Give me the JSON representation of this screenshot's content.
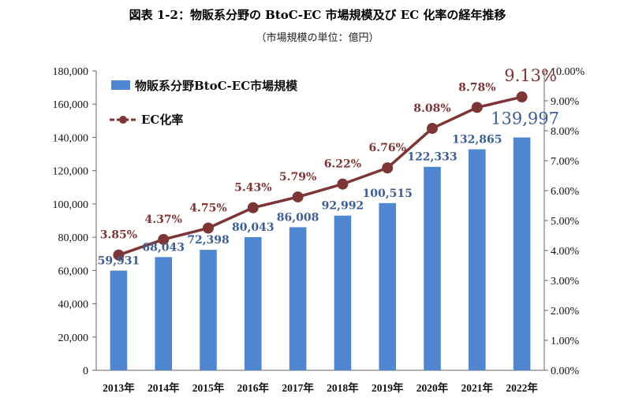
{
  "title": "図表 1-2：物販系分野の BtoC-EC 市場規模及び EC 化率の経年推移",
  "subtitle": "（市場規模の単位：億円）",
  "chart_data": {
    "type": "bar+line",
    "categories": [
      "2013年",
      "2014年",
      "2015年",
      "2016年",
      "2017年",
      "2018年",
      "2019年",
      "2020年",
      "2021年",
      "2022年"
    ],
    "series": [
      {
        "name": "物販系分野BtoC-EC市場規模",
        "type": "bar",
        "axis": "left",
        "color": "#4f86cf",
        "values": [
          59931,
          68043,
          72398,
          80043,
          86008,
          92992,
          100515,
          122333,
          132865,
          139997
        ],
        "labels": [
          "59,931",
          "68,043",
          "72,398",
          "80,043",
          "86,008",
          "92,992",
          "100,515",
          "122,333",
          "132,865",
          "139,997"
        ]
      },
      {
        "name": "EC化率",
        "type": "line",
        "axis": "right",
        "color": "#7d3535",
        "values": [
          3.85,
          4.37,
          4.75,
          5.43,
          5.79,
          6.22,
          6.76,
          8.08,
          8.78,
          9.13
        ],
        "labels": [
          "3.85%",
          "4.37%",
          "4.75%",
          "5.43%",
          "5.79%",
          "6.22%",
          "6.76%",
          "8.08%",
          "8.78%",
          "9.13%"
        ]
      }
    ],
    "y_left": {
      "range": [
        0,
        180000
      ],
      "ticks": [
        "0",
        "20,000",
        "40,000",
        "60,000",
        "80,000",
        "100,000",
        "120,000",
        "140,000",
        "160,000",
        "180,000"
      ]
    },
    "y_right": {
      "range": [
        0,
        10
      ],
      "ticks": [
        "0.00%",
        "1.00%",
        "2.00%",
        "3.00%",
        "4.00%",
        "5.00%",
        "6.00%",
        "7.00%",
        "8.00%",
        "9.00%",
        "10.00%"
      ]
    },
    "legend": {
      "position": "top-left",
      "entries": [
        "物販系分野BtoC-EC市場規模",
        "EC化率"
      ]
    },
    "grid": false
  }
}
